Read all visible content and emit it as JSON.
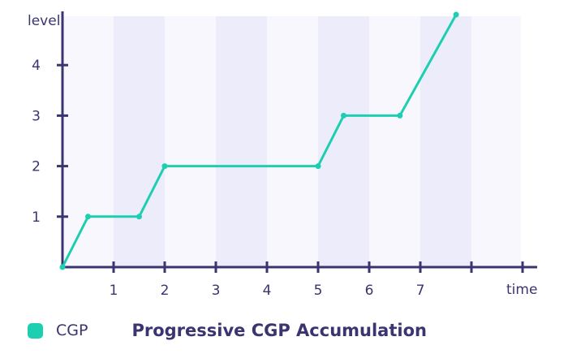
{
  "chart_data": {
    "type": "line",
    "title": "Progressive CGP Accumulation",
    "xlabel": "time",
    "ylabel": "level",
    "xlim": [
      0,
      9
    ],
    "ylim": [
      0,
      5
    ],
    "x_ticks": [
      1,
      2,
      3,
      4,
      5,
      6,
      7
    ],
    "y_ticks": [
      1,
      2,
      3,
      4
    ],
    "shaded_bands": [
      [
        1,
        2
      ],
      [
        3,
        4
      ],
      [
        5,
        6
      ],
      [
        7,
        8
      ]
    ],
    "series": [
      {
        "name": "CGP",
        "color": "#1ccfb1",
        "points": [
          {
            "x": 0,
            "y": 0
          },
          {
            "x": 0.5,
            "y": 1
          },
          {
            "x": 1.5,
            "y": 1
          },
          {
            "x": 2,
            "y": 2
          },
          {
            "x": 5,
            "y": 2
          },
          {
            "x": 5.5,
            "y": 3
          },
          {
            "x": 6.6,
            "y": 3
          },
          {
            "x": 7.7,
            "y": 5
          }
        ]
      }
    ],
    "colors": {
      "axis": "#3a3470",
      "band": "#ececfb",
      "band_light": "#f7f7fd"
    },
    "legend": "bottom-left"
  }
}
